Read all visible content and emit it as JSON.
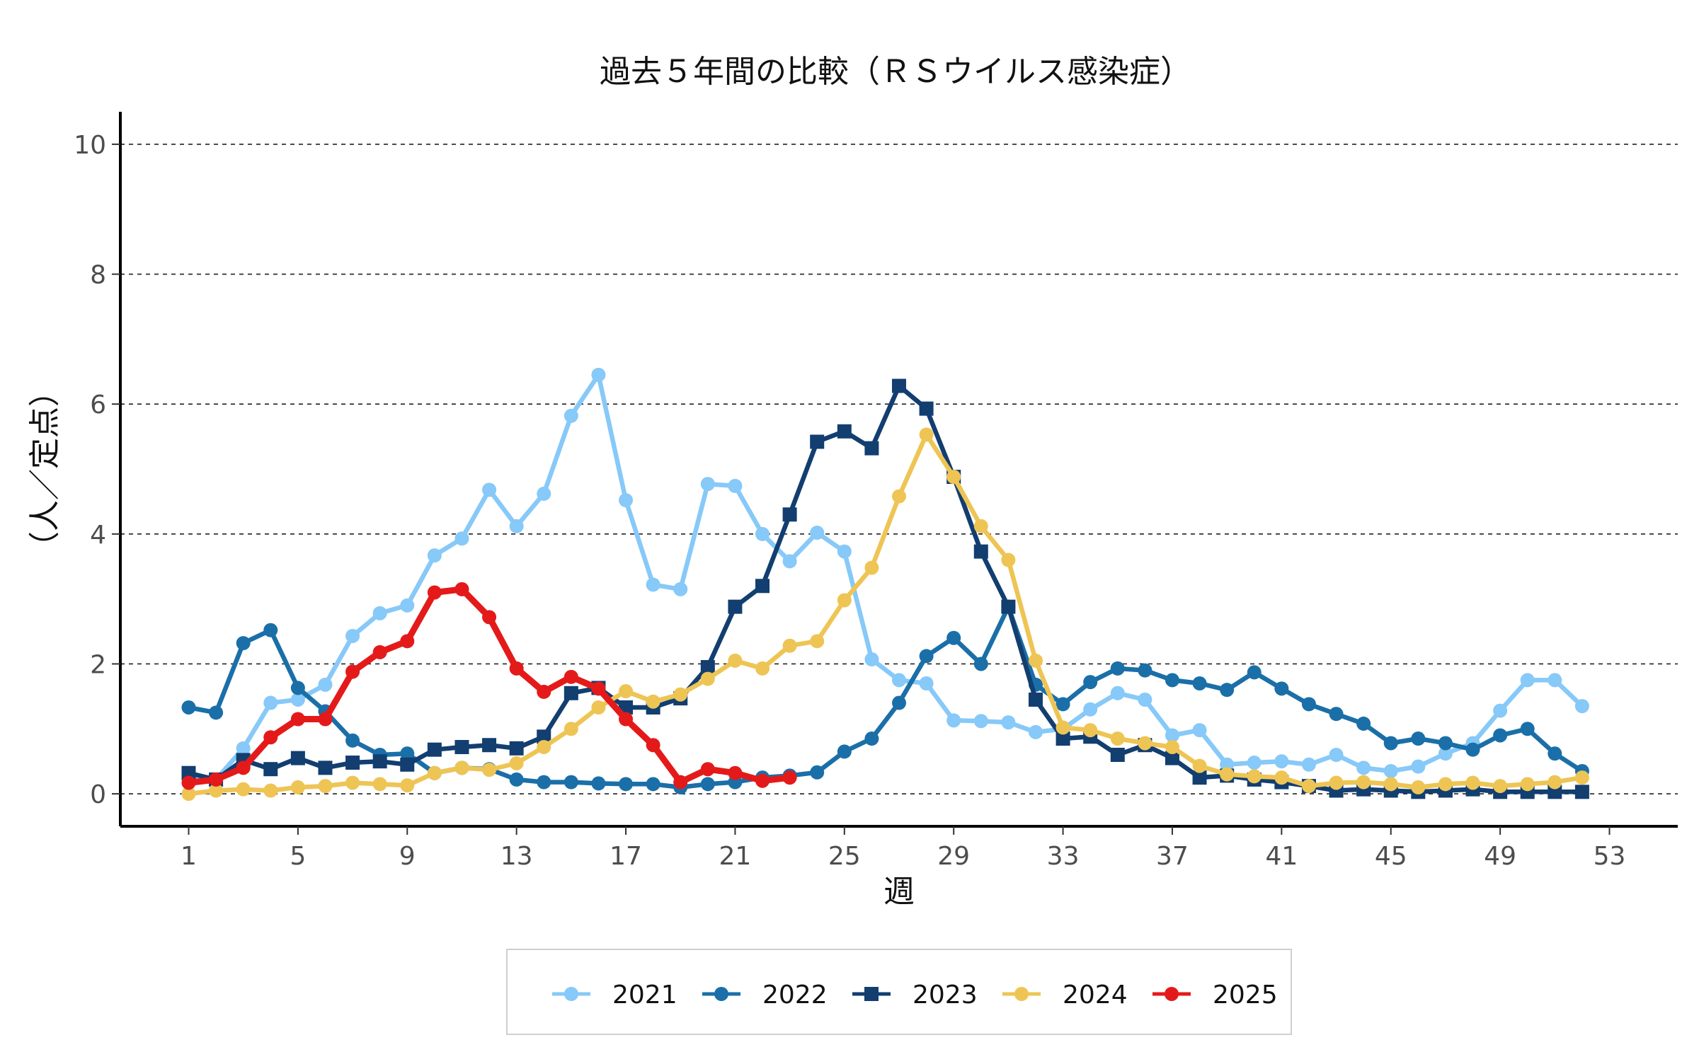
{
  "chart_data": {
    "type": "line",
    "title": "過去５年間の比較（ＲＳウイルス感染症）",
    "xlabel": "週",
    "ylabel": "（人／定点）",
    "xlim": [
      -1.5,
      55.5
    ],
    "ylim": [
      -0.5,
      10.5
    ],
    "x_ticks": [
      1,
      5,
      9,
      13,
      17,
      21,
      25,
      29,
      33,
      37,
      41,
      45,
      49,
      53
    ],
    "y_ticks": [
      0,
      2,
      4,
      6,
      8,
      10
    ],
    "grid": "horizontal-dashed",
    "legend_position": "bottom",
    "series": [
      {
        "name": "2021",
        "color": "#87c9f8",
        "marker": "circle",
        "x": [
          1,
          2,
          3,
          4,
          5,
          6,
          7,
          8,
          9,
          10,
          11,
          12,
          13,
          14,
          15,
          16,
          17,
          18,
          19,
          20,
          21,
          22,
          23,
          24,
          25,
          26,
          27,
          28,
          29,
          30,
          31,
          32,
          33,
          34,
          35,
          36,
          37,
          38,
          39,
          40,
          41,
          42,
          43,
          44,
          45,
          46,
          47,
          48,
          49,
          50,
          51,
          52
        ],
        "values": [
          0.25,
          0.22,
          0.7,
          1.4,
          1.45,
          1.68,
          2.43,
          2.78,
          2.9,
          3.67,
          3.93,
          4.68,
          4.12,
          4.62,
          5.82,
          6.45,
          4.52,
          3.22,
          3.15,
          4.77,
          4.74,
          4.0,
          3.58,
          4.02,
          3.73,
          2.07,
          1.75,
          1.7,
          1.13,
          1.12,
          1.1,
          0.95,
          1.0,
          1.3,
          1.55,
          1.45,
          0.9,
          0.98,
          0.45,
          0.48,
          0.5,
          0.45,
          0.6,
          0.4,
          0.35,
          0.42,
          0.62,
          0.78,
          1.28,
          1.75,
          1.75,
          1.35
        ]
      },
      {
        "name": "2022",
        "color": "#1a6fa8",
        "marker": "circle",
        "x": [
          1,
          2,
          3,
          4,
          5,
          6,
          7,
          8,
          9,
          10,
          11,
          12,
          13,
          14,
          15,
          16,
          17,
          18,
          19,
          20,
          21,
          22,
          23,
          24,
          25,
          26,
          27,
          28,
          29,
          30,
          31,
          32,
          33,
          34,
          35,
          36,
          37,
          38,
          39,
          40,
          41,
          42,
          43,
          44,
          45,
          46,
          47,
          48,
          49,
          50,
          51,
          52
        ],
        "values": [
          1.33,
          1.25,
          2.32,
          2.52,
          1.63,
          1.27,
          0.82,
          0.6,
          0.62,
          0.32,
          0.4,
          0.38,
          0.22,
          0.18,
          0.18,
          0.16,
          0.15,
          0.15,
          0.1,
          0.15,
          0.18,
          0.25,
          0.28,
          0.33,
          0.65,
          0.85,
          1.4,
          2.12,
          2.4,
          2.0,
          2.88,
          1.68,
          1.38,
          1.72,
          1.93,
          1.9,
          1.75,
          1.7,
          1.6,
          1.87,
          1.62,
          1.38,
          1.23,
          1.08,
          0.78,
          0.85,
          0.78,
          0.68,
          0.9,
          1.0,
          0.62,
          0.35
        ]
      },
      {
        "name": "2023",
        "color": "#123e70",
        "marker": "square",
        "x": [
          1,
          2,
          3,
          4,
          5,
          6,
          7,
          8,
          9,
          10,
          11,
          12,
          13,
          14,
          15,
          16,
          17,
          18,
          19,
          20,
          21,
          22,
          23,
          24,
          25,
          26,
          27,
          28,
          29,
          30,
          31,
          32,
          33,
          34,
          35,
          36,
          37,
          38,
          39,
          40,
          41,
          42,
          43,
          44,
          45,
          46,
          47,
          48,
          49,
          50,
          51,
          52
        ],
        "values": [
          0.32,
          0.22,
          0.52,
          0.38,
          0.55,
          0.4,
          0.48,
          0.5,
          0.45,
          0.68,
          0.72,
          0.75,
          0.7,
          0.88,
          1.55,
          1.63,
          1.33,
          1.33,
          1.47,
          1.95,
          2.88,
          3.2,
          4.3,
          5.42,
          5.58,
          5.32,
          6.28,
          5.93,
          4.88,
          3.73,
          2.88,
          1.45,
          0.85,
          0.88,
          0.6,
          0.75,
          0.55,
          0.25,
          0.28,
          0.22,
          0.18,
          0.12,
          0.05,
          0.07,
          0.05,
          0.03,
          0.05,
          0.07,
          0.03,
          0.03,
          0.03,
          0.03
        ]
      },
      {
        "name": "2024",
        "color": "#eec554",
        "marker": "circle",
        "x": [
          1,
          2,
          3,
          4,
          5,
          6,
          7,
          8,
          9,
          10,
          11,
          12,
          13,
          14,
          15,
          16,
          17,
          18,
          19,
          20,
          21,
          22,
          23,
          24,
          25,
          26,
          27,
          28,
          29,
          30,
          31,
          32,
          33,
          34,
          35,
          36,
          37,
          38,
          39,
          40,
          41,
          42,
          43,
          44,
          45,
          46,
          47,
          48,
          49,
          50,
          51,
          52
        ],
        "values": [
          0.0,
          0.05,
          0.07,
          0.05,
          0.1,
          0.12,
          0.17,
          0.15,
          0.13,
          0.32,
          0.4,
          0.37,
          0.47,
          0.72,
          1.0,
          1.33,
          1.58,
          1.42,
          1.53,
          1.77,
          2.05,
          1.93,
          2.28,
          2.35,
          2.98,
          3.48,
          4.58,
          5.53,
          4.88,
          4.12,
          3.6,
          2.05,
          1.02,
          0.98,
          0.85,
          0.78,
          0.72,
          0.43,
          0.3,
          0.27,
          0.25,
          0.12,
          0.17,
          0.18,
          0.15,
          0.1,
          0.15,
          0.17,
          0.12,
          0.15,
          0.18,
          0.25
        ]
      },
      {
        "name": "2025",
        "color": "#e41a1a",
        "marker": "circle",
        "x": [
          1,
          2,
          3,
          4,
          5,
          6,
          7,
          8,
          9,
          10,
          11,
          12,
          13,
          14,
          15,
          16,
          17,
          18,
          19,
          20,
          21,
          22,
          23
        ],
        "values": [
          0.17,
          0.22,
          0.4,
          0.87,
          1.15,
          1.15,
          1.88,
          2.18,
          2.35,
          3.1,
          3.15,
          2.72,
          1.93,
          1.57,
          1.8,
          1.62,
          1.15,
          0.75,
          0.18,
          0.38,
          0.32,
          0.2,
          0.25
        ]
      }
    ]
  }
}
